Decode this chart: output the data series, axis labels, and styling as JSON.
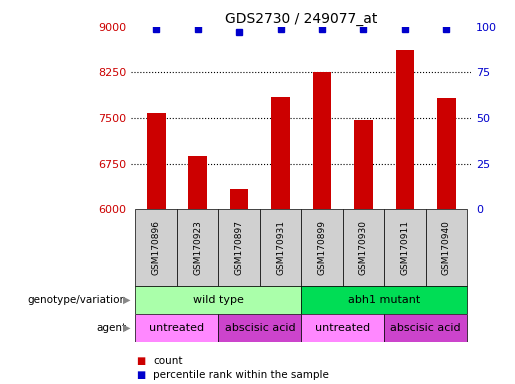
{
  "title": "GDS2730 / 249077_at",
  "samples": [
    "GSM170896",
    "GSM170923",
    "GSM170897",
    "GSM170931",
    "GSM170899",
    "GSM170930",
    "GSM170911",
    "GSM170940"
  ],
  "counts": [
    7580,
    6880,
    6340,
    7850,
    8260,
    7470,
    8620,
    7830
  ],
  "percentile_ranks": [
    99,
    99,
    97,
    99,
    99,
    99,
    99,
    99
  ],
  "ylim_left": [
    6000,
    9000
  ],
  "yticks_left": [
    6000,
    6750,
    7500,
    8250,
    9000
  ],
  "ylim_right": [
    0,
    100
  ],
  "yticks_right": [
    0,
    25,
    50,
    75,
    100
  ],
  "bar_color": "#cc0000",
  "dot_color": "#0000cc",
  "bar_width": 0.45,
  "grid_color": "#000000",
  "left_tick_color": "#cc0000",
  "right_tick_color": "#0000cc",
  "genotype_groups": [
    {
      "label": "wild type",
      "start": 0,
      "end": 4,
      "color": "#aaffaa"
    },
    {
      "label": "abh1 mutant",
      "start": 4,
      "end": 8,
      "color": "#00dd55"
    }
  ],
  "agent_groups": [
    {
      "label": "untreated",
      "start": 0,
      "end": 2,
      "color": "#ff88ff"
    },
    {
      "label": "abscisic acid",
      "start": 2,
      "end": 4,
      "color": "#cc44cc"
    },
    {
      "label": "untreated",
      "start": 4,
      "end": 6,
      "color": "#ff88ff"
    },
    {
      "label": "abscisic acid",
      "start": 6,
      "end": 8,
      "color": "#cc44cc"
    }
  ],
  "sample_bg_color": "#d0d0d0",
  "legend_count_color": "#cc0000",
  "legend_dot_color": "#0000cc",
  "background_color": "#ffffff",
  "label_row1": "genotype/variation",
  "label_row2": "agent",
  "legend_count_label": "count",
  "legend_percentile_label": "percentile rank within the sample"
}
